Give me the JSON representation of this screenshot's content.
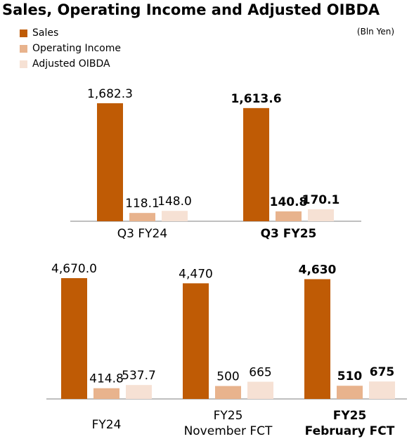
{
  "title": "Sales, Operating Income and Adjusted OIBDA",
  "unit": "(Bln Yen)",
  "colors": {
    "sales": "#bf5b05",
    "operating_income": "#e8b38d",
    "adjusted_oibda": "#f6e1d4",
    "axis": "#7f7f7f"
  },
  "chart_data": [
    {
      "type": "bar",
      "legend": "top-left",
      "series": [
        {
          "name": "Sales",
          "values": [
            1682.3,
            1613.6
          ]
        },
        {
          "name": "Operating Income",
          "values": [
            118.1,
            140.8
          ]
        },
        {
          "name": "Adjusted OIBDA",
          "values": [
            148.0,
            170.1
          ]
        }
      ],
      "categories": [
        {
          "lines": [
            "Q3 FY24"
          ],
          "bold": false
        },
        {
          "lines": [
            "Q3 FY25"
          ],
          "bold": true
        }
      ],
      "labels": [
        [
          "1,682.3",
          "118.1",
          "148.0"
        ],
        [
          "1,613.6",
          "140.8",
          "170.1"
        ]
      ]
    },
    {
      "type": "bar",
      "series": [
        {
          "name": "Sales",
          "values": [
            4670.0,
            4470,
            4630
          ]
        },
        {
          "name": "Operating Income",
          "values": [
            414.8,
            500,
            510
          ]
        },
        {
          "name": "Adjusted OIBDA",
          "values": [
            537.7,
            665,
            675
          ]
        }
      ],
      "categories": [
        {
          "lines": [
            "FY24"
          ],
          "bold": false
        },
        {
          "lines": [
            "FY25",
            "November FCT"
          ],
          "bold": false
        },
        {
          "lines": [
            "FY25",
            "February FCT"
          ],
          "bold": true
        }
      ],
      "labels": [
        [
          "4,670.0",
          "414.8",
          "537.7"
        ],
        [
          "4,470",
          "500",
          "665"
        ],
        [
          "4,630",
          "510",
          "675"
        ]
      ]
    }
  ]
}
